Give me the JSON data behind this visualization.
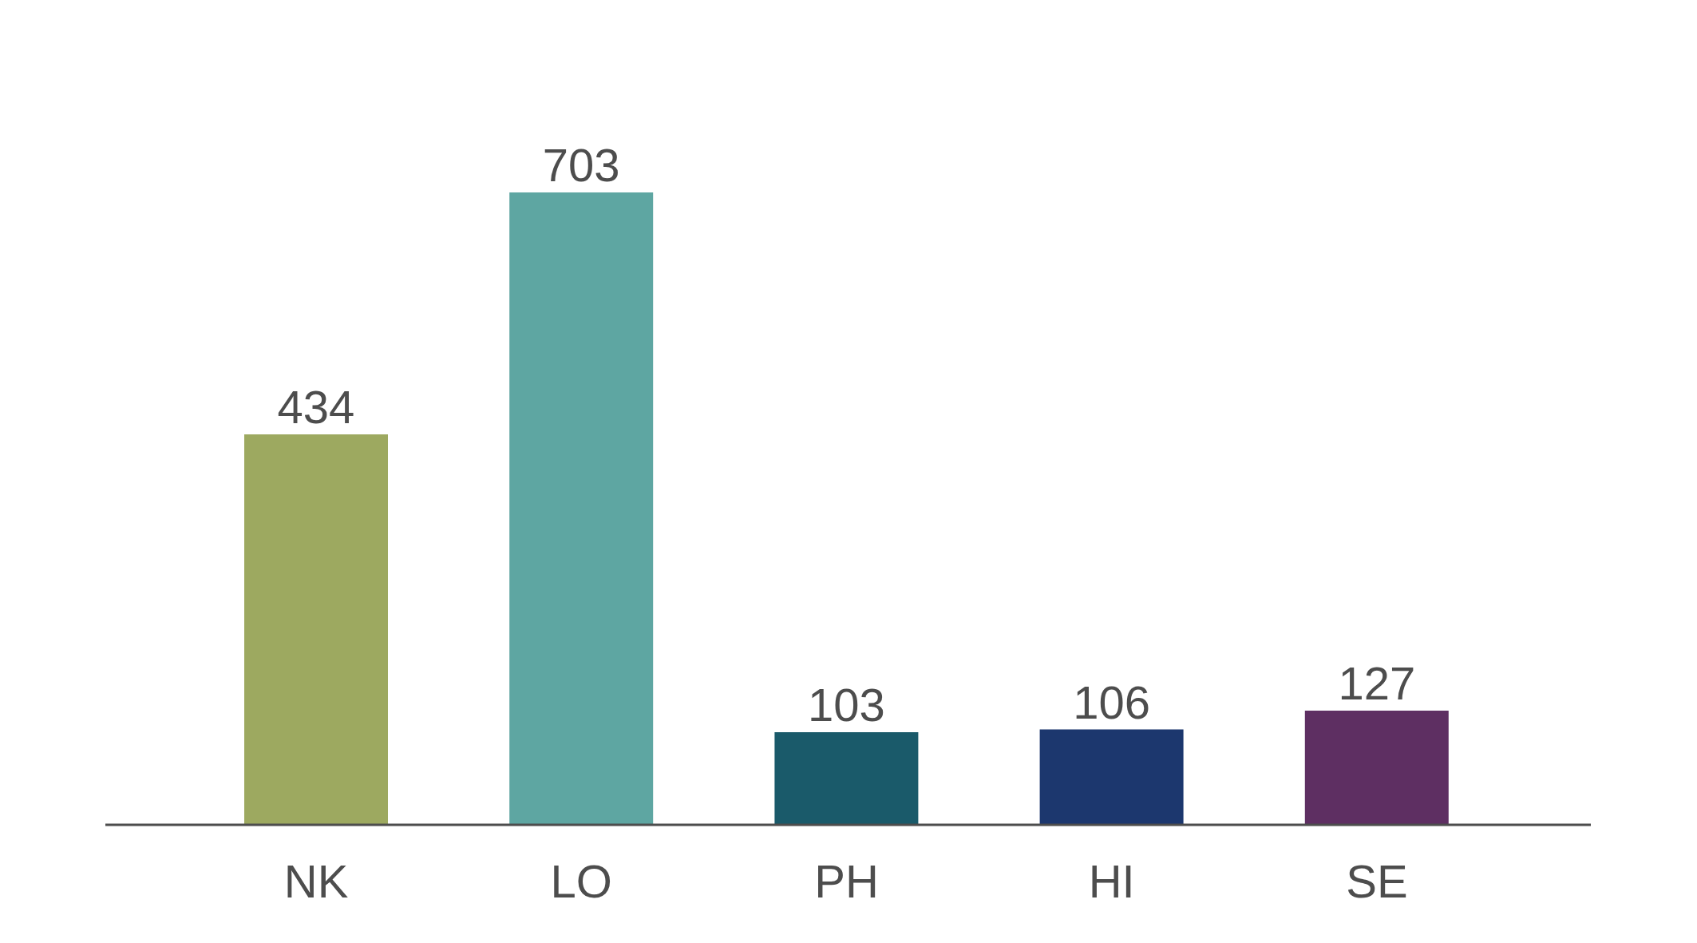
{
  "chart_data": {
    "type": "bar",
    "categories": [
      "NK",
      "LO",
      "PH",
      "HI",
      "SE"
    ],
    "values": [
      434,
      703,
      103,
      106,
      127
    ],
    "colors": [
      "#9da960",
      "#5ea6a2",
      "#1a5a6a",
      "#1c376e",
      "#5e2f62"
    ],
    "data_labels": true,
    "grid": false,
    "legend": false
  }
}
